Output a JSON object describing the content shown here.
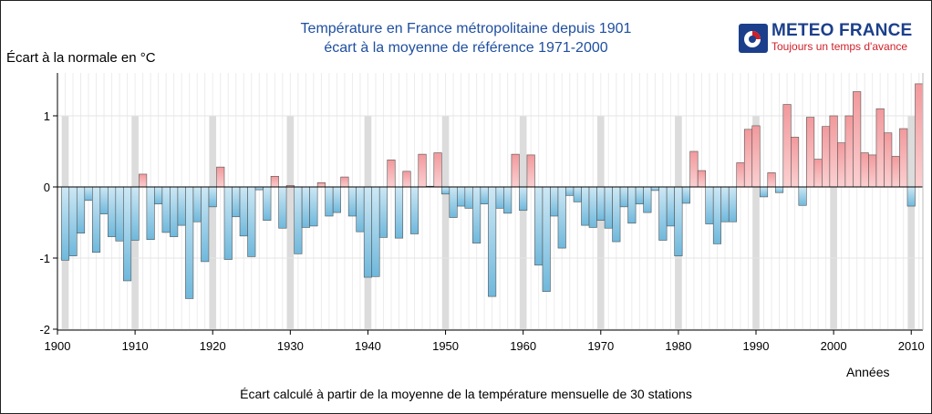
{
  "header": {
    "title_line1": "Température en France métropolitaine depuis 1901",
    "title_line2": "écart à la moyenne de référence 1971-2000"
  },
  "logo": {
    "name": "METEO FRANCE",
    "tagline": "Toujours un temps d'avance"
  },
  "footnote": "Écart calculé à partir de la moyenne de la température mensuelle de 30 stations",
  "colors": {
    "positive_fill": "#f2999c",
    "positive_light": "#fbd0d1",
    "negative_fill": "#6fb8dc",
    "negative_light": "#cde8f5",
    "decade_band": "#dcdcdc",
    "title": "#1f4fa0"
  },
  "chart_data": {
    "type": "bar",
    "xlabel": "Années",
    "ylabel": "Écart à la normale en °C",
    "ylim": [
      -2,
      1.55
    ],
    "yticks": [
      1,
      0,
      -1,
      -2
    ],
    "xticks": [
      1900,
      1910,
      1920,
      1930,
      1940,
      1950,
      1960,
      1970,
      1980,
      1990,
      2000,
      2010
    ],
    "decade_highlight_years": [
      1901,
      1910,
      1920,
      1930,
      1940,
      1950,
      1960,
      1970,
      1980,
      1990,
      2000,
      2010
    ],
    "x": [
      1901,
      1902,
      1903,
      1904,
      1905,
      1906,
      1907,
      1908,
      1909,
      1910,
      1911,
      1912,
      1913,
      1914,
      1915,
      1916,
      1917,
      1918,
      1919,
      1920,
      1921,
      1922,
      1923,
      1924,
      1925,
      1926,
      1927,
      1928,
      1929,
      1930,
      1931,
      1932,
      1933,
      1934,
      1935,
      1936,
      1937,
      1938,
      1939,
      1940,
      1941,
      1942,
      1943,
      1944,
      1945,
      1946,
      1947,
      1948,
      1949,
      1950,
      1951,
      1952,
      1953,
      1954,
      1955,
      1956,
      1957,
      1958,
      1959,
      1960,
      1961,
      1962,
      1963,
      1964,
      1965,
      1966,
      1967,
      1968,
      1969,
      1970,
      1971,
      1972,
      1973,
      1974,
      1975,
      1976,
      1977,
      1978,
      1979,
      1980,
      1981,
      1982,
      1983,
      1984,
      1985,
      1986,
      1987,
      1988,
      1989,
      1990,
      1991,
      1992,
      1993,
      1994,
      1995,
      1996,
      1997,
      1998,
      1999,
      2000,
      2001,
      2002,
      2003,
      2004,
      2005,
      2006,
      2007,
      2008,
      2009,
      2010,
      2011
    ],
    "values": [
      -1.03,
      -0.97,
      -0.65,
      -0.19,
      -0.92,
      -0.38,
      -0.7,
      -0.76,
      -1.32,
      -0.75,
      0.18,
      -0.74,
      -0.24,
      -0.64,
      -0.7,
      -0.54,
      -1.57,
      -0.49,
      -1.05,
      -0.28,
      0.28,
      -1.02,
      -0.42,
      -0.69,
      -0.98,
      -0.04,
      -0.47,
      0.15,
      -0.58,
      0.02,
      -0.94,
      -0.57,
      -0.55,
      0.06,
      -0.41,
      -0.36,
      0.14,
      -0.41,
      -0.63,
      -1.27,
      -1.26,
      -0.71,
      0.38,
      -0.72,
      0.22,
      -0.66,
      0.46,
      0.01,
      0.48,
      -0.1,
      -0.43,
      -0.27,
      -0.3,
      -0.79,
      -0.24,
      -1.54,
      -0.3,
      -0.37,
      0.46,
      -0.33,
      0.45,
      -1.1,
      -1.47,
      -0.41,
      -0.86,
      -0.12,
      -0.21,
      -0.54,
      -0.57,
      -0.47,
      -0.58,
      -0.77,
      -0.28,
      -0.51,
      -0.24,
      -0.36,
      -0.05,
      -0.75,
      -0.55,
      -0.97,
      -0.23,
      0.5,
      0.23,
      -0.52,
      -0.8,
      -0.49,
      -0.49,
      0.34,
      0.81,
      0.86,
      -0.14,
      0.2,
      -0.08,
      1.16,
      0.7,
      -0.26,
      0.98,
      0.39,
      0.85,
      1.0,
      0.62,
      1.0,
      1.34,
      0.48,
      0.45,
      1.1,
      0.76,
      0.43,
      0.82,
      -0.27,
      1.45
    ]
  }
}
